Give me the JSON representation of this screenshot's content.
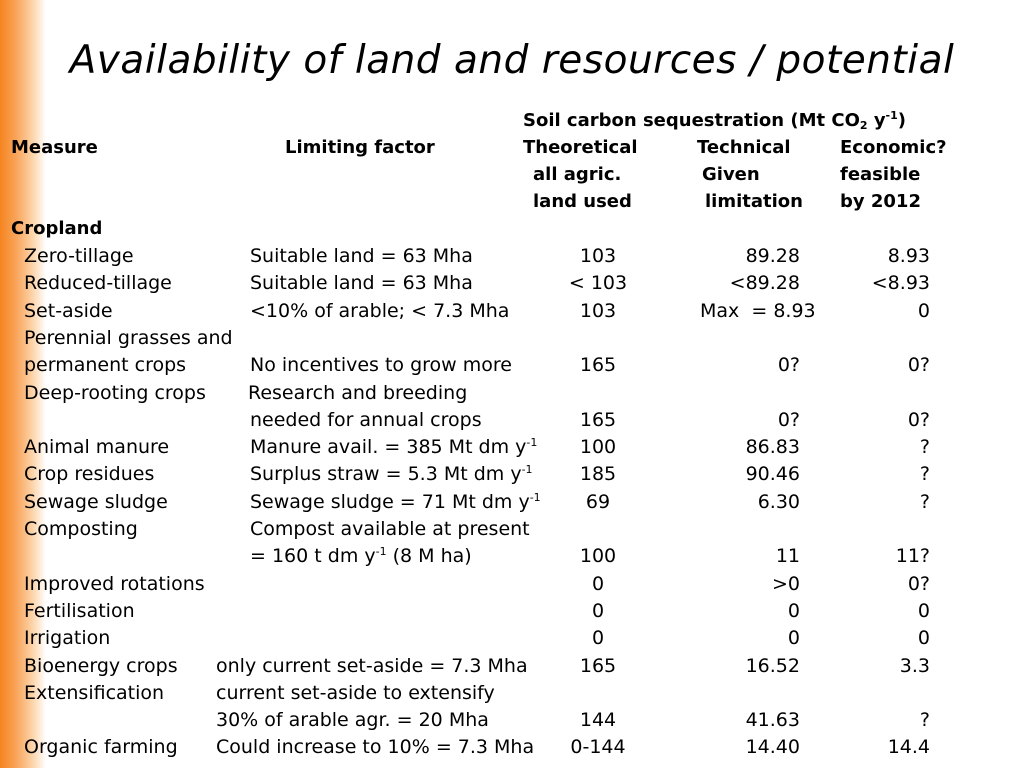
{
  "title": "Availability of land and resources / potential",
  "header": {
    "group_prefix": "Soil carbon sequestration (Mt CO",
    "group_sub": "2",
    "group_mid": " y",
    "group_sup": "-1",
    "group_suffix": ")",
    "measure": "Measure",
    "limiting_factor": "Limiting factor",
    "theoretical": [
      "Theoretical",
      "all agric.",
      "land used"
    ],
    "technical": [
      "Technical",
      "Given",
      "limitation"
    ],
    "economic": [
      "Economic?",
      "feasible",
      "by 2012"
    ]
  },
  "section": "Cropland",
  "rows": [
    {
      "measure": "Zero-tillage",
      "limit": "Suitable land = 63 Mha",
      "theo": "103",
      "tech": "89.28",
      "econ": "8.93"
    },
    {
      "measure": "Reduced-tillage",
      "limit": "Suitable land = 63 Mha",
      "theo": "< 103",
      "tech": "<89.28",
      "econ": "<8.93"
    },
    {
      "measure": "Set-aside",
      "limit": "<10% of arable; < 7.3 Mha",
      "theo": "103",
      "tech": "Max  = 8.93",
      "econ": "0"
    },
    {
      "measure": "Perennial grasses and",
      "limit": "",
      "theo": "",
      "tech": "",
      "econ": ""
    },
    {
      "measure": "permanent crops",
      "limit": "No incentives to grow more",
      "theo": "165",
      "tech": "0?",
      "econ": "0?"
    },
    {
      "measure": "Deep-rooting crops",
      "limit": "Research and breeding",
      "theo": "",
      "tech": "",
      "econ": ""
    },
    {
      "measure": "",
      "limit": "needed for annual crops",
      "theo": "165",
      "tech": "0?",
      "econ": "0?"
    },
    {
      "measure": "Animal manure",
      "limit": "Manure avail. = 385 Mt dm y",
      "limit_sup": "-1",
      "theo": "100",
      "tech": "86.83",
      "econ": "?"
    },
    {
      "measure": "Crop residues",
      "limit": "Surplus straw = 5.3 Mt dm y",
      "limit_sup": "-1",
      "theo": "185",
      "tech": "90.46",
      "econ": "?"
    },
    {
      "measure": "Sewage sludge",
      "limit": "Sewage sludge = 71 Mt dm y",
      "limit_sup": "-1",
      "theo": "69",
      "tech": "6.30",
      "econ": "?"
    },
    {
      "measure": "Composting",
      "limit": "Compost available at present",
      "theo": "",
      "tech": "",
      "econ": ""
    },
    {
      "measure": "",
      "limit": "= 160 t dm y",
      "limit_sup": "-1",
      "limit_after": " (8 M ha)",
      "theo": "100",
      "tech": "11",
      "econ": "11?"
    },
    {
      "measure": "Improved rotations",
      "limit": "",
      "theo": "0",
      "tech": ">0",
      "econ": "0?"
    },
    {
      "measure": "Fertilisation",
      "limit": "",
      "theo": "0",
      "tech": "0",
      "econ": "0"
    },
    {
      "measure": "Irrigation",
      "limit": "",
      "theo": "0",
      "tech": "0",
      "econ": "0"
    },
    {
      "measure": "Bioenergy crops",
      "limit": "only current set-aside = 7.3 Mha",
      "theo": "165",
      "tech": "16.52",
      "econ": "3.3"
    },
    {
      "measure": "Extensification",
      "limit": "current set-aside to extensify",
      "theo": "",
      "tech": "",
      "econ": ""
    },
    {
      "measure": "",
      "limit": "30% of arable agr. = 20 Mha",
      "theo": "144",
      "tech": "41.63",
      "econ": "?"
    },
    {
      "measure": "Organic farming",
      "limit": "Could increase to 10% = 7.3 Mha",
      "theo": "0-144",
      "tech": "14.40",
      "econ": "14.4"
    }
  ]
}
